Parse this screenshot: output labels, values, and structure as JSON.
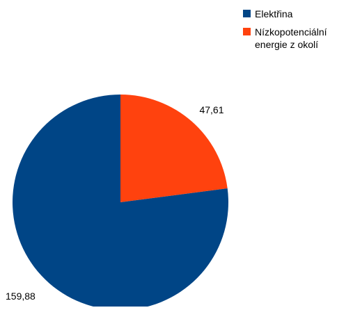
{
  "chart_data": {
    "type": "pie",
    "title": "",
    "categories": [
      "Elektřina",
      "Nízkopotenciální energie z okolí"
    ],
    "values": [
      159.88,
      47.61
    ],
    "value_labels": [
      "159,88",
      "47,61"
    ],
    "colors": [
      "#004586",
      "#ff420e"
    ],
    "legend": {
      "placement": "top-right",
      "items": [
        {
          "lines": [
            "Elektřina"
          ]
        },
        {
          "lines": [
            "Nízkopotenciální",
            "energie z okolí"
          ]
        }
      ]
    },
    "start_angle_deg": 0,
    "direction": "clockwise"
  }
}
